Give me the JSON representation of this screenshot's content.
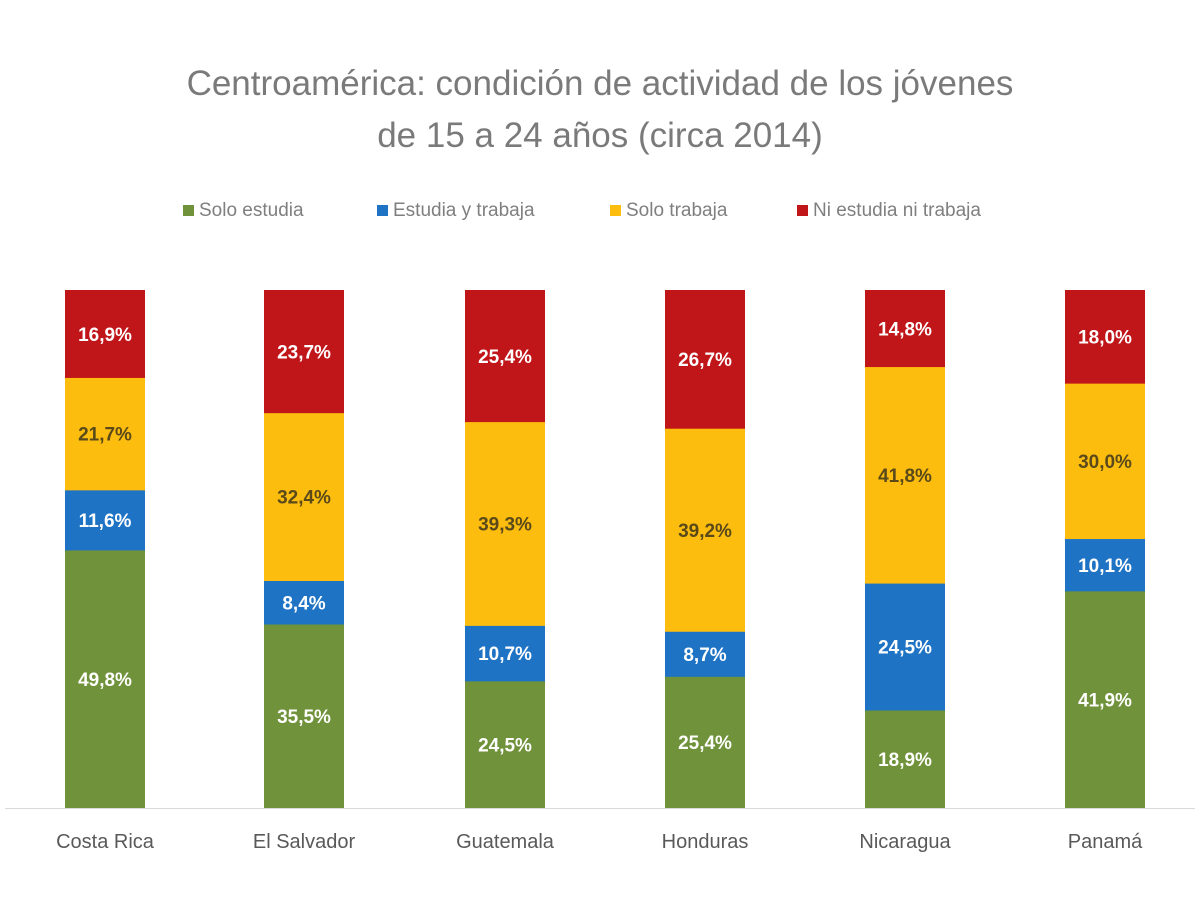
{
  "chart_data": {
    "type": "bar",
    "stacked": true,
    "percent_stacked": true,
    "title": "Centroamérica: condición de actividad de los jóvenes de 15 a 24 años (circa 2014)",
    "title_lines": [
      "Centroamérica: condición de actividad de los jóvenes",
      "de 15 a 24 años (circa 2014)"
    ],
    "legend_position": "top",
    "grid": false,
    "ylim": [
      0,
      100
    ],
    "categories": [
      "Costa Rica",
      "El Salvador",
      "Guatemala",
      "Honduras",
      "Nicaragua",
      "Panamá"
    ],
    "series": [
      {
        "name": "Solo estudia",
        "color": "#70923a",
        "label_color": "#ffffff",
        "values": [
          49.8,
          35.5,
          24.5,
          25.4,
          18.9,
          41.9
        ],
        "labels": [
          "49,8%",
          "35,5%",
          "24,5%",
          "25,4%",
          "18,9%",
          "41,9%"
        ]
      },
      {
        "name": "Estudia y trabaja",
        "color": "#1f73c4",
        "label_color": "#ffffff",
        "values": [
          11.6,
          8.4,
          10.7,
          8.7,
          24.5,
          10.1
        ],
        "labels": [
          "11,6%",
          "8,4%",
          "10,7%",
          "8,7%",
          "24,5%",
          "10,1%"
        ]
      },
      {
        "name": "Solo trabaja",
        "color": "#fdbd0f",
        "label_color": "#5a4a1a",
        "values": [
          21.7,
          32.4,
          39.3,
          39.2,
          41.8,
          30.0
        ],
        "labels": [
          "21,7%",
          "32,4%",
          "39,3%",
          "39,2%",
          "41,8%",
          "30,0%"
        ]
      },
      {
        "name": "Ni estudia ni trabaja",
        "color": "#c0161a",
        "label_color": "#ffffff",
        "values": [
          16.9,
          23.7,
          25.4,
          26.7,
          14.8,
          18.0
        ],
        "labels": [
          "16,9%",
          "23,7%",
          "25,4%",
          "26,7%",
          "14,8%",
          "18,0%"
        ]
      }
    ]
  }
}
